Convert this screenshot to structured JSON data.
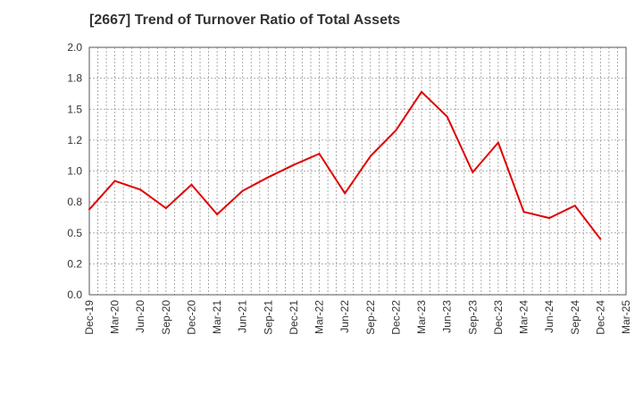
{
  "chart_data": {
    "type": "line",
    "title": "[2667]  Trend of Turnover Ratio of Total Assets",
    "xlabel": "",
    "ylabel": "",
    "ylim": [
      0,
      2.0
    ],
    "yticks": [
      "0.0",
      "0.2",
      "0.5",
      "0.8",
      "1.0",
      "1.2",
      "1.5",
      "1.8",
      "2.0"
    ],
    "x_tick_labels": [
      "Dec-19",
      "Mar-20",
      "Jun-20",
      "Sep-20",
      "Dec-20",
      "Mar-21",
      "Jun-21",
      "Sep-21",
      "Dec-21",
      "Mar-22",
      "Jun-22",
      "Sep-22",
      "Dec-22",
      "Mar-23",
      "Jun-23",
      "Sep-23",
      "Dec-23",
      "Mar-24",
      "Jun-24",
      "Sep-24",
      "Dec-24",
      "Mar-25"
    ],
    "grid": true,
    "series": [
      {
        "color": "#e00000",
        "x": [
          "Dec-19",
          "Mar-20",
          "Jun-20",
          "Sep-20",
          "Dec-20",
          "Mar-21",
          "Jun-21",
          "Sep-21",
          "Dec-21",
          "Mar-22",
          "Jun-22",
          "Sep-22",
          "Dec-22",
          "Mar-23",
          "Jun-23",
          "Sep-23",
          "Dec-23",
          "Mar-24",
          "Jun-24",
          "Sep-24",
          "Dec-24"
        ],
        "values": [
          0.69,
          0.92,
          0.85,
          0.7,
          0.89,
          0.65,
          0.84,
          0.95,
          1.05,
          1.14,
          0.82,
          1.12,
          1.33,
          1.64,
          1.44,
          0.99,
          1.23,
          0.67,
          0.62,
          0.72,
          0.45
        ]
      }
    ]
  }
}
